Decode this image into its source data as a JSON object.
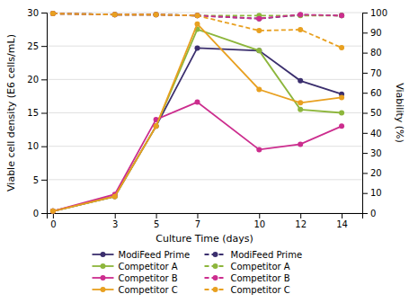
{
  "chart_data": {
    "type": "line",
    "xlabel": "Culture Time (days)",
    "ylabel": "Viable cell density (E6 cells/mL)",
    "y2label": "Viability (%)",
    "x": [
      0,
      3,
      5,
      7,
      10,
      12,
      14
    ],
    "xlim": [
      -0.3,
      15.0
    ],
    "xticks": [
      0,
      3,
      5,
      7,
      10,
      12,
      14
    ],
    "ylim": [
      0,
      30
    ],
    "yticks": [
      0,
      5,
      10,
      15,
      20,
      25,
      30
    ],
    "y2lim": [
      0,
      100
    ],
    "y2ticks": [
      0,
      10,
      20,
      30,
      40,
      50,
      60,
      70,
      80,
      90,
      100
    ],
    "grid": true,
    "series": [
      {
        "name": "ModiFeed Prime",
        "color": "#3b2f6e",
        "axis": "y",
        "line_style": "solid",
        "marker": "circle",
        "values": [
          0.3,
          2.5,
          13.0,
          24.7,
          24.3,
          19.8,
          17.8
        ]
      },
      {
        "name": "Competitor A",
        "color": "#8db63c",
        "axis": "y",
        "line_style": "solid",
        "marker": "circle",
        "values": [
          0.3,
          2.5,
          13.0,
          27.5,
          24.3,
          15.5,
          15.0
        ]
      },
      {
        "name": "Competitor B",
        "color": "#cc2d8e",
        "axis": "y",
        "line_style": "solid",
        "marker": "circle",
        "values": [
          0.3,
          2.8,
          14.0,
          16.6,
          9.5,
          10.3,
          13.0
        ]
      },
      {
        "name": "Competitor C",
        "color": "#e8a020",
        "axis": "y",
        "line_style": "solid",
        "marker": "circle",
        "values": [
          0.3,
          2.5,
          13.0,
          28.3,
          18.5,
          16.5,
          17.3
        ]
      },
      {
        "name": "ModiFeed Prime",
        "color": "#3b2f6e",
        "axis": "y2",
        "line_style": "dashed",
        "marker": "circle",
        "values": [
          99.5,
          99.0,
          99.0,
          98.5,
          97.0,
          98.8,
          98.5
        ]
      },
      {
        "name": "Competitor A",
        "color": "#8db63c",
        "axis": "y2",
        "line_style": "dashed",
        "marker": "circle",
        "values": [
          99.5,
          99.0,
          99.0,
          98.5,
          98.5,
          98.5,
          98.5
        ]
      },
      {
        "name": "Competitor B",
        "color": "#cc2d8e",
        "axis": "y2",
        "line_style": "dashed",
        "marker": "circle",
        "values": [
          99.5,
          99.0,
          99.0,
          98.5,
          97.0,
          99.0,
          98.5
        ]
      },
      {
        "name": "Competitor C",
        "color": "#e8a020",
        "axis": "y2",
        "line_style": "dashed",
        "marker": "circle",
        "values": [
          99.5,
          99.0,
          99.0,
          98.5,
          91.0,
          91.5,
          82.5
        ]
      }
    ]
  }
}
